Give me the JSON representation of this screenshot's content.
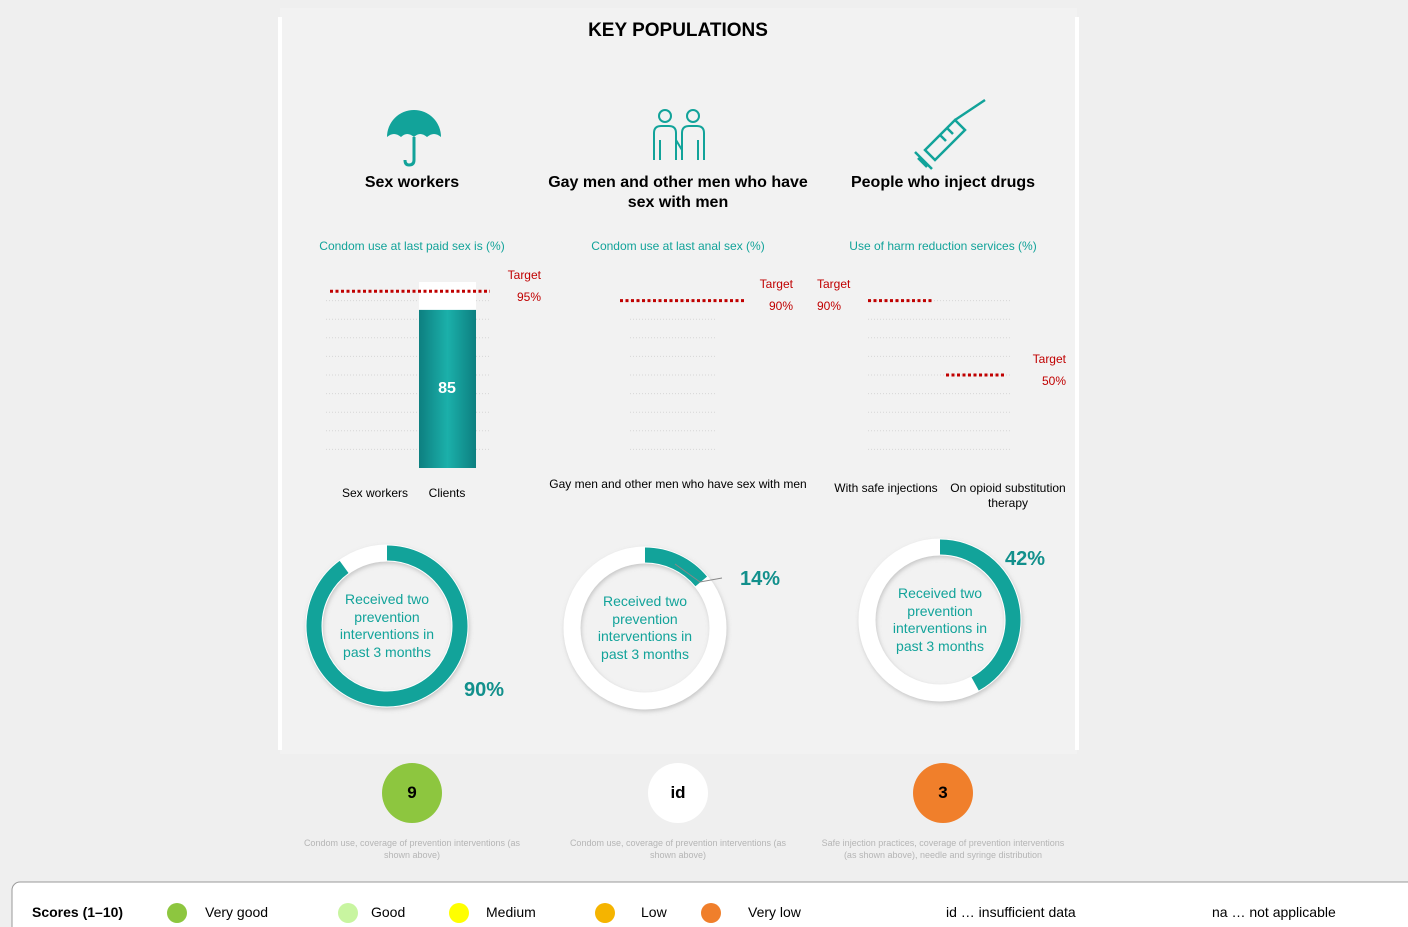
{
  "title": "KEY POPULATIONS",
  "ylim": [
    0,
    100
  ],
  "yticks": [
    0,
    10,
    20,
    30,
    40,
    50,
    60,
    70,
    80,
    90,
    100
  ],
  "panels": [
    {
      "heading": "Sex workers",
      "chart_title": "Condom use at last paid sex is (%)",
      "categories": [
        "Sex workers",
        "Clients"
      ],
      "values": [
        null,
        85
      ],
      "targets": [
        {
          "label": "Target",
          "value": 95,
          "value_label": "95%"
        }
      ],
      "donut_label": "Received two prevention interventions in past 3 months",
      "donut_value": 90,
      "donut_value_label": "90%",
      "score": 9,
      "score_color": "#8dc63f",
      "score_note": "Condom use, coverage of prevention interventions (as shown above)"
    },
    {
      "heading": "Gay men and other men who have sex with men",
      "chart_title": "Condom use at last anal sex (%)",
      "categories": [
        "Gay men and other men who have sex with men"
      ],
      "values": [
        null
      ],
      "targets": [
        {
          "label": "Target",
          "value": 90,
          "value_label": "90%"
        }
      ],
      "donut_label": "Received two prevention interventions in past 3 months",
      "donut_value": 14,
      "donut_value_label": "14%",
      "score": "id",
      "score_color": "#ffffff",
      "score_note": "Condom use, coverage of prevention interventions (as shown above)"
    },
    {
      "heading": "People who inject drugs",
      "chart_title": "Use of harm reduction services (%)",
      "categories": [
        "With safe injections",
        "On opioid substitution therapy"
      ],
      "values": [
        null,
        null
      ],
      "targets": [
        {
          "label": "Target",
          "value": 90,
          "value_label": "90%"
        },
        {
          "label": "Target",
          "value": 50,
          "value_label": "50%"
        }
      ],
      "donut_label": "Received two prevention interventions in past 3 months",
      "donut_value": 42,
      "donut_value_label": "42%",
      "score": 3,
      "score_color": "#f07f2b",
      "score_note": "Safe injection practices, coverage of prevention interventions (as shown above), needle and syringe distribution"
    }
  ],
  "legend": {
    "title": "Scores (1–10)",
    "items": [
      {
        "label": "Very good",
        "color": "#8dc63f"
      },
      {
        "label": "Good",
        "color": "#c8f5a0"
      },
      {
        "label": "Medium",
        "color": "#ffff00"
      },
      {
        "label": "Low",
        "color": "#f5b400"
      },
      {
        "label": "Very low",
        "color": "#f07f2b"
      }
    ],
    "notes": [
      "id … insufficient data",
      "na … not applicable"
    ]
  }
}
